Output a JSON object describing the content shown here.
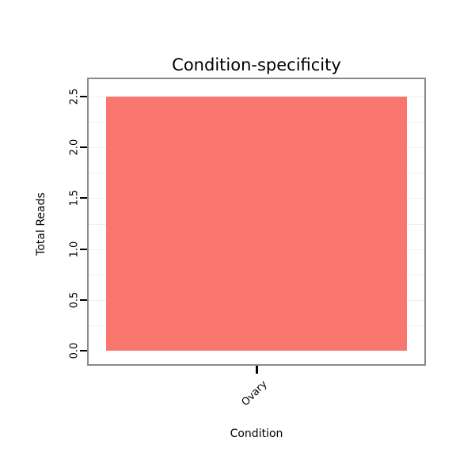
{
  "chart_data": {
    "type": "bar",
    "title": "Condition-specificity",
    "xlabel": "Condition",
    "ylabel": "Total Reads",
    "categories": [
      "Ovary"
    ],
    "values": [
      2.5
    ],
    "ylim": [
      0,
      2.5
    ],
    "yticks": [
      0.0,
      0.5,
      1.0,
      1.5,
      2.0,
      2.5
    ],
    "ytick_labels": [
      "0.0",
      "0.5",
      "1.0",
      "1.5",
      "2.0",
      "2.5"
    ],
    "bar_color": "#F8766D",
    "panel_border_color": "#8A8A8A",
    "grid": "very light horizontal minor gridlines",
    "legend": "none"
  }
}
